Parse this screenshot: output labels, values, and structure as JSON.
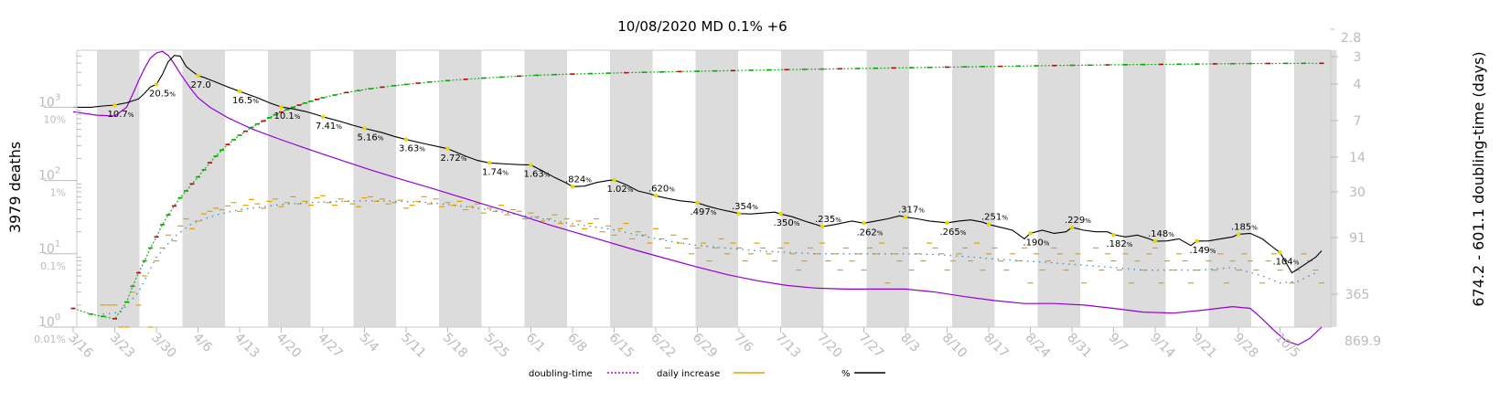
{
  "chart_data": {
    "type": "line",
    "title": "10/08/2020 MD 0.1% +6",
    "ylabel_left": "3979 deaths",
    "ylabel_right": "674.2 - 601.1 doubling-time (days)",
    "x_ticks": [
      "3/16",
      "3/23",
      "3/30",
      "4/6",
      "4/13",
      "4/20",
      "4/27",
      "5/4",
      "5/11",
      "5/18",
      "5/25",
      "6/1",
      "6/8",
      "6/15",
      "6/22",
      "6/29",
      "7/6",
      "7/13",
      "7/20",
      "7/27",
      "8/3",
      "8/10",
      "8/17",
      "8/24",
      "8/31",
      "9/7",
      "9/14",
      "9/21",
      "9/28",
      "10/5"
    ],
    "y_left_ticks": [
      {
        "base": "10",
        "exp": "3",
        "value": 1000
      },
      {
        "base": "10",
        "exp": "2",
        "value": 100
      },
      {
        "base": "10",
        "exp": "1",
        "value": 10
      },
      {
        "base": "10",
        "exp": "0",
        "value": 1
      }
    ],
    "pct_ticks": [
      {
        "label": "10%",
        "value": 1000
      },
      {
        "label": "1%",
        "value": 100
      },
      {
        "label": "0.1%",
        "value": 10
      },
      {
        "label": "0.01%",
        "value": 1
      }
    ],
    "y_right_ticks": [
      "2.8",
      "3",
      "4",
      "7",
      "14",
      "30",
      "91",
      "365",
      "869.9"
    ],
    "legend": [
      {
        "label": "doubling-time",
        "color": "#9400d3",
        "style": "dotted"
      },
      {
        "label": "daily increase",
        "color": "#e69f00",
        "style": "solid"
      },
      {
        "label": "%",
        "color": "#000000",
        "style": "solid"
      }
    ],
    "pct_annotations": [
      {
        "day": 7,
        "num": "10.7",
        "unit": "%"
      },
      {
        "day": 14,
        "num": "20.5",
        "unit": "%"
      },
      {
        "day": 21,
        "num": "27.0",
        "unit": ""
      },
      {
        "day": 28,
        "num": "16.5",
        "unit": "%"
      },
      {
        "day": 35,
        "num": "10.1",
        "unit": "%"
      },
      {
        "day": 42,
        "num": "7.41",
        "unit": "%"
      },
      {
        "day": 49,
        "num": "5.16",
        "unit": "%"
      },
      {
        "day": 56,
        "num": "3.63",
        "unit": "%"
      },
      {
        "day": 63,
        "num": "2.72",
        "unit": "%"
      },
      {
        "day": 70,
        "num": "1.74",
        "unit": "%"
      },
      {
        "day": 77,
        "num": "1.63",
        "unit": "%"
      },
      {
        "day": 84,
        "num": ".824",
        "unit": "%"
      },
      {
        "day": 91,
        "num": "1.02",
        "unit": "%"
      },
      {
        "day": 98,
        "num": ".620",
        "unit": "%"
      },
      {
        "day": 105,
        "num": ".497",
        "unit": "%"
      },
      {
        "day": 112,
        "num": ".354",
        "unit": "%"
      },
      {
        "day": 119,
        "num": ".350",
        "unit": "%"
      },
      {
        "day": 126,
        "num": ".235",
        "unit": "%"
      },
      {
        "day": 133,
        "num": ".262",
        "unit": "%"
      },
      {
        "day": 140,
        "num": ".317",
        "unit": "%"
      },
      {
        "day": 147,
        "num": ".265",
        "unit": "%"
      },
      {
        "day": 154,
        "num": ".251",
        "unit": "%"
      },
      {
        "day": 161,
        "num": ".190",
        "unit": "%"
      },
      {
        "day": 168,
        "num": ".229",
        "unit": "%"
      },
      {
        "day": 175,
        "num": ".182",
        "unit": "%"
      },
      {
        "day": 182,
        "num": ".148",
        "unit": "%"
      },
      {
        "day": 189,
        "num": ".149",
        "unit": "%"
      },
      {
        "day": 196,
        "num": ".185",
        "unit": "%"
      },
      {
        "day": 203,
        "num": ".104",
        "unit": "%"
      }
    ],
    "pct_line": [
      [
        0,
        1000
      ],
      [
        3,
        1000
      ],
      [
        5,
        1040
      ],
      [
        7,
        1070
      ],
      [
        9,
        1150
      ],
      [
        11,
        1300
      ],
      [
        12,
        1550
      ],
      [
        13,
        1900
      ],
      [
        14,
        2050
      ],
      [
        15,
        2800
      ],
      [
        16,
        4200
      ],
      [
        17,
        5100
      ],
      [
        18,
        5000
      ],
      [
        19,
        3600
      ],
      [
        20,
        3100
      ],
      [
        21,
        2700
      ],
      [
        22,
        2550
      ],
      [
        24,
        2200
      ],
      [
        26,
        1900
      ],
      [
        28,
        1650
      ],
      [
        31,
        1350
      ],
      [
        33,
        1150
      ],
      [
        35,
        1010
      ],
      [
        37,
        950
      ],
      [
        39,
        880
      ],
      [
        41,
        790
      ],
      [
        42,
        741
      ],
      [
        45,
        640
      ],
      [
        47,
        570
      ],
      [
        49,
        516
      ],
      [
        52,
        450
      ],
      [
        54,
        400
      ],
      [
        56,
        363
      ],
      [
        59,
        320
      ],
      [
        61,
        295
      ],
      [
        63,
        272
      ],
      [
        66,
        215
      ],
      [
        68,
        188
      ],
      [
        70,
        174
      ],
      [
        73,
        168
      ],
      [
        75,
        165
      ],
      [
        77,
        163
      ],
      [
        79,
        135
      ],
      [
        81,
        110
      ],
      [
        83,
        92
      ],
      [
        84,
        82.4
      ],
      [
        86,
        84
      ],
      [
        88,
        94
      ],
      [
        90,
        100
      ],
      [
        91,
        102
      ],
      [
        93,
        88
      ],
      [
        95,
        72
      ],
      [
        97,
        66
      ],
      [
        98,
        62
      ],
      [
        100,
        57
      ],
      [
        102,
        53
      ],
      [
        104,
        51
      ],
      [
        105,
        49.7
      ],
      [
        107,
        44
      ],
      [
        109,
        40
      ],
      [
        111,
        37
      ],
      [
        112,
        35.4
      ],
      [
        114,
        35
      ],
      [
        116,
        36
      ],
      [
        118,
        37
      ],
      [
        119,
        35
      ],
      [
        121,
        32
      ],
      [
        123,
        28
      ],
      [
        125,
        25
      ],
      [
        126,
        23.5
      ],
      [
        128,
        25
      ],
      [
        130,
        27
      ],
      [
        131,
        28
      ],
      [
        133,
        26.2
      ],
      [
        135,
        28
      ],
      [
        137,
        30
      ],
      [
        139,
        33
      ],
      [
        140,
        31.7
      ],
      [
        142,
        30
      ],
      [
        144,
        28
      ],
      [
        146,
        27
      ],
      [
        147,
        26.5
      ],
      [
        149,
        28
      ],
      [
        151,
        29
      ],
      [
        153,
        27
      ],
      [
        154,
        25.1
      ],
      [
        156,
        23
      ],
      [
        158,
        21
      ],
      [
        160,
        16
      ],
      [
        161,
        19
      ],
      [
        163,
        21
      ],
      [
        165,
        19
      ],
      [
        167,
        20
      ],
      [
        168,
        22.9
      ],
      [
        170,
        21
      ],
      [
        172,
        20
      ],
      [
        174,
        20
      ],
      [
        175,
        18.2
      ],
      [
        177,
        17
      ],
      [
        179,
        18
      ],
      [
        181,
        16
      ],
      [
        182,
        14.8
      ],
      [
        184,
        15
      ],
      [
        186,
        16
      ],
      [
        188,
        13
      ],
      [
        189,
        14.9
      ],
      [
        191,
        15
      ],
      [
        193,
        16
      ],
      [
        195,
        17
      ],
      [
        196,
        18.5
      ],
      [
        198,
        19
      ],
      [
        200,
        16
      ],
      [
        202,
        12
      ],
      [
        203,
        10.4
      ],
      [
        205,
        5.5
      ],
      [
        207,
        7
      ],
      [
        209,
        9
      ],
      [
        210,
        11
      ]
    ],
    "cumulative_line": [
      [
        0,
        1.8
      ],
      [
        3,
        1.5
      ],
      [
        5,
        1.4
      ],
      [
        7,
        1.3
      ],
      [
        9,
        2.2
      ],
      [
        10,
        3.6
      ],
      [
        11,
        5.5
      ],
      [
        12,
        8
      ],
      [
        13,
        12
      ],
      [
        14,
        17
      ],
      [
        15,
        25
      ],
      [
        16,
        34
      ],
      [
        17,
        45
      ],
      [
        18,
        58
      ],
      [
        19,
        72
      ],
      [
        20,
        90
      ],
      [
        21,
        112
      ],
      [
        22,
        140
      ],
      [
        23,
        175
      ],
      [
        24,
        215
      ],
      [
        25,
        260
      ],
      [
        26,
        310
      ],
      [
        27,
        360
      ],
      [
        28,
        415
      ],
      [
        29,
        470
      ],
      [
        30,
        530
      ],
      [
        31,
        590
      ],
      [
        32,
        650
      ],
      [
        33,
        720
      ],
      [
        34,
        790
      ],
      [
        35,
        860
      ],
      [
        36,
        930
      ],
      [
        37,
        1000
      ],
      [
        38,
        1070
      ],
      [
        39,
        1140
      ],
      [
        40,
        1210
      ],
      [
        41,
        1280
      ],
      [
        42,
        1350
      ],
      [
        44,
        1470
      ],
      [
        46,
        1590
      ],
      [
        48,
        1690
      ],
      [
        50,
        1790
      ],
      [
        52,
        1880
      ],
      [
        54,
        1970
      ],
      [
        56,
        2050
      ],
      [
        58,
        2130
      ],
      [
        60,
        2210
      ],
      [
        63,
        2310
      ],
      [
        66,
        2410
      ],
      [
        69,
        2500
      ],
      [
        72,
        2580
      ],
      [
        75,
        2660
      ],
      [
        78,
        2730
      ],
      [
        81,
        2790
      ],
      [
        84,
        2840
      ],
      [
        87,
        2880
      ],
      [
        90,
        2920
      ],
      [
        93,
        2960
      ],
      [
        96,
        3000
      ],
      [
        99,
        3030
      ],
      [
        102,
        3070
      ],
      [
        105,
        3100
      ],
      [
        108,
        3130
      ],
      [
        111,
        3160
      ],
      [
        114,
        3200
      ],
      [
        117,
        3230
      ],
      [
        120,
        3260
      ],
      [
        123,
        3290
      ],
      [
        126,
        3320
      ],
      [
        129,
        3350
      ],
      [
        132,
        3380
      ],
      [
        135,
        3410
      ],
      [
        138,
        3440
      ],
      [
        141,
        3470
      ],
      [
        144,
        3500
      ],
      [
        147,
        3530
      ],
      [
        150,
        3560
      ],
      [
        153,
        3590
      ],
      [
        156,
        3620
      ],
      [
        159,
        3650
      ],
      [
        162,
        3680
      ],
      [
        165,
        3710
      ],
      [
        168,
        3740
      ],
      [
        171,
        3760
      ],
      [
        174,
        3790
      ],
      [
        177,
        3810
      ],
      [
        180,
        3830
      ],
      [
        183,
        3850
      ],
      [
        186,
        3870
      ],
      [
        189,
        3890
      ],
      [
        192,
        3910
      ],
      [
        195,
        3930
      ],
      [
        198,
        3950
      ],
      [
        201,
        3960
      ],
      [
        204,
        3970
      ],
      [
        207,
        3975
      ],
      [
        210,
        3979
      ]
    ],
    "doubling_line": [
      [
        0,
        870
      ],
      [
        4,
        780
      ],
      [
        7,
        760
      ],
      [
        9,
        1000
      ],
      [
        10,
        1500
      ],
      [
        11,
        2300
      ],
      [
        12,
        3400
      ],
      [
        13,
        4700
      ],
      [
        14,
        5500
      ],
      [
        15,
        5800
      ],
      [
        16,
        5100
      ],
      [
        17,
        3900
      ],
      [
        18,
        2900
      ],
      [
        19,
        2200
      ],
      [
        20,
        1700
      ],
      [
        21,
        1350
      ],
      [
        23,
        1000
      ],
      [
        26,
        720
      ],
      [
        30,
        510
      ],
      [
        35,
        360
      ],
      [
        40,
        260
      ],
      [
        45,
        190
      ],
      [
        50,
        140
      ],
      [
        55,
        105
      ],
      [
        60,
        80
      ],
      [
        65,
        60
      ],
      [
        70,
        45
      ],
      [
        75,
        34
      ],
      [
        80,
        25
      ],
      [
        85,
        19
      ],
      [
        90,
        14.5
      ],
      [
        95,
        11
      ],
      [
        100,
        8.5
      ],
      [
        105,
        6.6
      ],
      [
        110,
        5.2
      ],
      [
        115,
        4.3
      ],
      [
        120,
        3.7
      ],
      [
        125,
        3.4
      ],
      [
        130,
        3.3
      ],
      [
        135,
        3.3
      ],
      [
        140,
        3.3
      ],
      [
        145,
        3.0
      ],
      [
        150,
        2.6
      ],
      [
        155,
        2.3
      ],
      [
        160,
        2.1
      ],
      [
        165,
        2.1
      ],
      [
        170,
        2.0
      ],
      [
        175,
        1.8
      ],
      [
        180,
        1.6
      ],
      [
        185,
        1.55
      ],
      [
        190,
        1.7
      ],
      [
        195,
        1.9
      ],
      [
        198,
        1.8
      ],
      [
        200,
        1.3
      ],
      [
        202,
        0.9
      ],
      [
        204,
        0.65
      ],
      [
        206,
        0.57
      ],
      [
        208,
        0.7
      ],
      [
        210,
        1.0
      ]
    ],
    "daily_mean_line": [
      [
        5,
        1.5
      ],
      [
        8,
        1.6
      ],
      [
        11,
        3
      ],
      [
        14,
        9
      ],
      [
        17,
        17
      ],
      [
        20,
        26
      ],
      [
        24,
        34
      ],
      [
        28,
        40
      ],
      [
        32,
        44
      ],
      [
        36,
        48
      ],
      [
        40,
        50
      ],
      [
        45,
        52
      ],
      [
        50,
        53
      ],
      [
        55,
        52
      ],
      [
        60,
        50
      ],
      [
        65,
        45
      ],
      [
        70,
        40
      ],
      [
        75,
        34
      ],
      [
        80,
        29
      ],
      [
        85,
        25
      ],
      [
        90,
        22
      ],
      [
        95,
        18
      ],
      [
        100,
        15
      ],
      [
        105,
        13
      ],
      [
        110,
        12
      ],
      [
        115,
        11
      ],
      [
        120,
        10.5
      ],
      [
        125,
        10
      ],
      [
        130,
        10
      ],
      [
        135,
        10
      ],
      [
        140,
        10
      ],
      [
        145,
        9.8
      ],
      [
        150,
        9.2
      ],
      [
        155,
        8.5
      ],
      [
        160,
        8
      ],
      [
        165,
        7.5
      ],
      [
        170,
        7
      ],
      [
        175,
        6.5
      ],
      [
        180,
        6
      ],
      [
        185,
        6
      ],
      [
        190,
        6
      ],
      [
        195,
        6.5
      ],
      [
        200,
        5
      ],
      [
        203,
        4
      ],
      [
        206,
        4.2
      ],
      [
        209,
        5.5
      ]
    ],
    "daily_values": [
      2,
      2,
      2,
      1,
      1,
      3,
      2,
      5,
      1,
      8,
      12,
      18,
      15,
      24,
      30,
      22,
      28,
      35,
      38,
      42,
      40,
      45,
      50,
      38,
      46,
      55,
      48,
      42,
      52,
      56,
      44,
      50,
      60,
      48,
      52,
      46,
      58,
      62,
      50,
      46,
      56,
      52,
      48,
      44,
      58,
      60,
      52,
      56,
      48,
      50,
      54,
      42,
      46,
      52,
      60,
      48,
      56,
      44,
      50,
      46,
      52,
      40,
      44,
      48,
      36,
      42,
      38,
      46,
      34,
      40,
      38,
      30,
      36,
      32,
      28,
      30,
      34,
      26,
      30,
      24,
      28,
      22,
      26,
      30,
      20,
      24,
      18,
      22,
      26,
      16,
      20,
      18,
      14,
      22,
      16,
      12,
      18,
      14,
      16,
      10,
      12,
      14,
      8,
      12,
      16,
      10,
      14,
      12,
      8,
      10,
      14,
      12,
      10,
      8,
      12,
      14,
      10,
      6,
      8,
      12,
      10,
      14,
      8,
      10,
      6,
      12,
      8,
      10,
      6,
      12,
      10,
      14,
      4,
      10,
      8,
      12,
      6,
      10,
      8,
      14,
      12,
      10,
      6,
      8,
      10,
      12,
      8,
      14,
      6,
      10,
      12,
      8,
      6,
      10,
      8,
      12,
      4,
      10,
      6,
      8,
      12,
      10,
      6,
      8,
      10,
      4,
      8,
      12,
      6,
      10,
      8,
      6,
      10,
      4,
      8,
      6,
      10,
      12,
      4,
      8,
      6,
      10,
      8,
      4,
      6,
      12,
      8,
      6,
      10,
      4,
      8,
      6,
      10,
      8,
      6,
      4,
      8,
      10,
      6,
      8,
      4,
      6,
      10,
      8,
      6,
      4
    ]
  }
}
